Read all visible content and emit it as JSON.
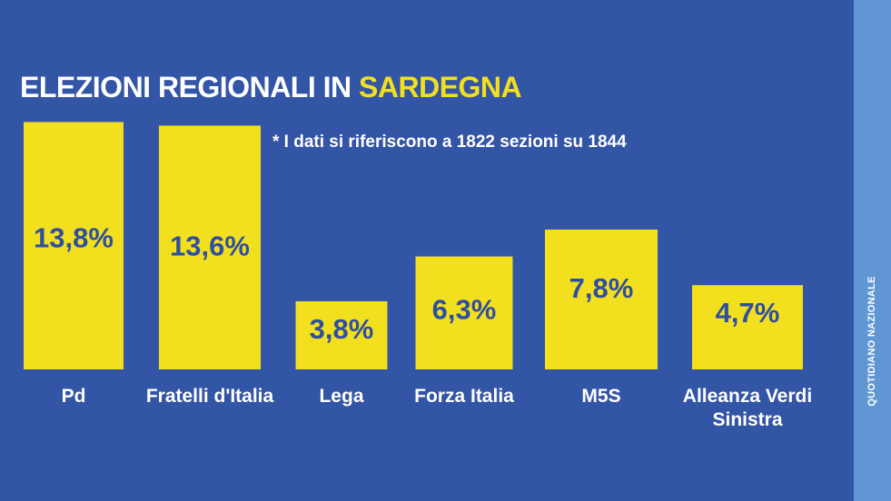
{
  "header": {
    "title_prefix": "ELEZIONI REGIONALI IN ",
    "title_highlight": "SARDEGNA",
    "footnote": "* I dati si riferiscono a 1822 sezioni su 1844"
  },
  "brand": {
    "label": "QUOTIDIANO NAZIONALE"
  },
  "colors": {
    "background": "#3355a6",
    "bar": "#f2e01f",
    "value_text": "#2f4f9e",
    "side_band": "#5f96d3"
  },
  "chart_data": {
    "type": "bar",
    "title": "ELEZIONI REGIONALI IN SARDEGNA",
    "categories": [
      "Pd",
      "Fratelli d'Italia",
      "Lega",
      "Forza Italia",
      "M5S",
      "Alleanza Verdi Sinistra"
    ],
    "values": [
      13.8,
      13.6,
      3.8,
      6.3,
      7.8,
      4.7
    ],
    "value_labels": [
      "13,8%",
      "13,6%",
      "3,8%",
      "6,3%",
      "7,8%",
      "4,7%"
    ],
    "category_label_lines": [
      [
        "Pd"
      ],
      [
        "Fratelli d'Italia"
      ],
      [
        "Lega"
      ],
      [
        "Forza Italia"
      ],
      [
        "M5S"
      ],
      [
        "Alleanza Verdi",
        "Sinistra"
      ]
    ],
    "xlabel": "",
    "ylabel": "",
    "grid": false,
    "legend": "none"
  }
}
